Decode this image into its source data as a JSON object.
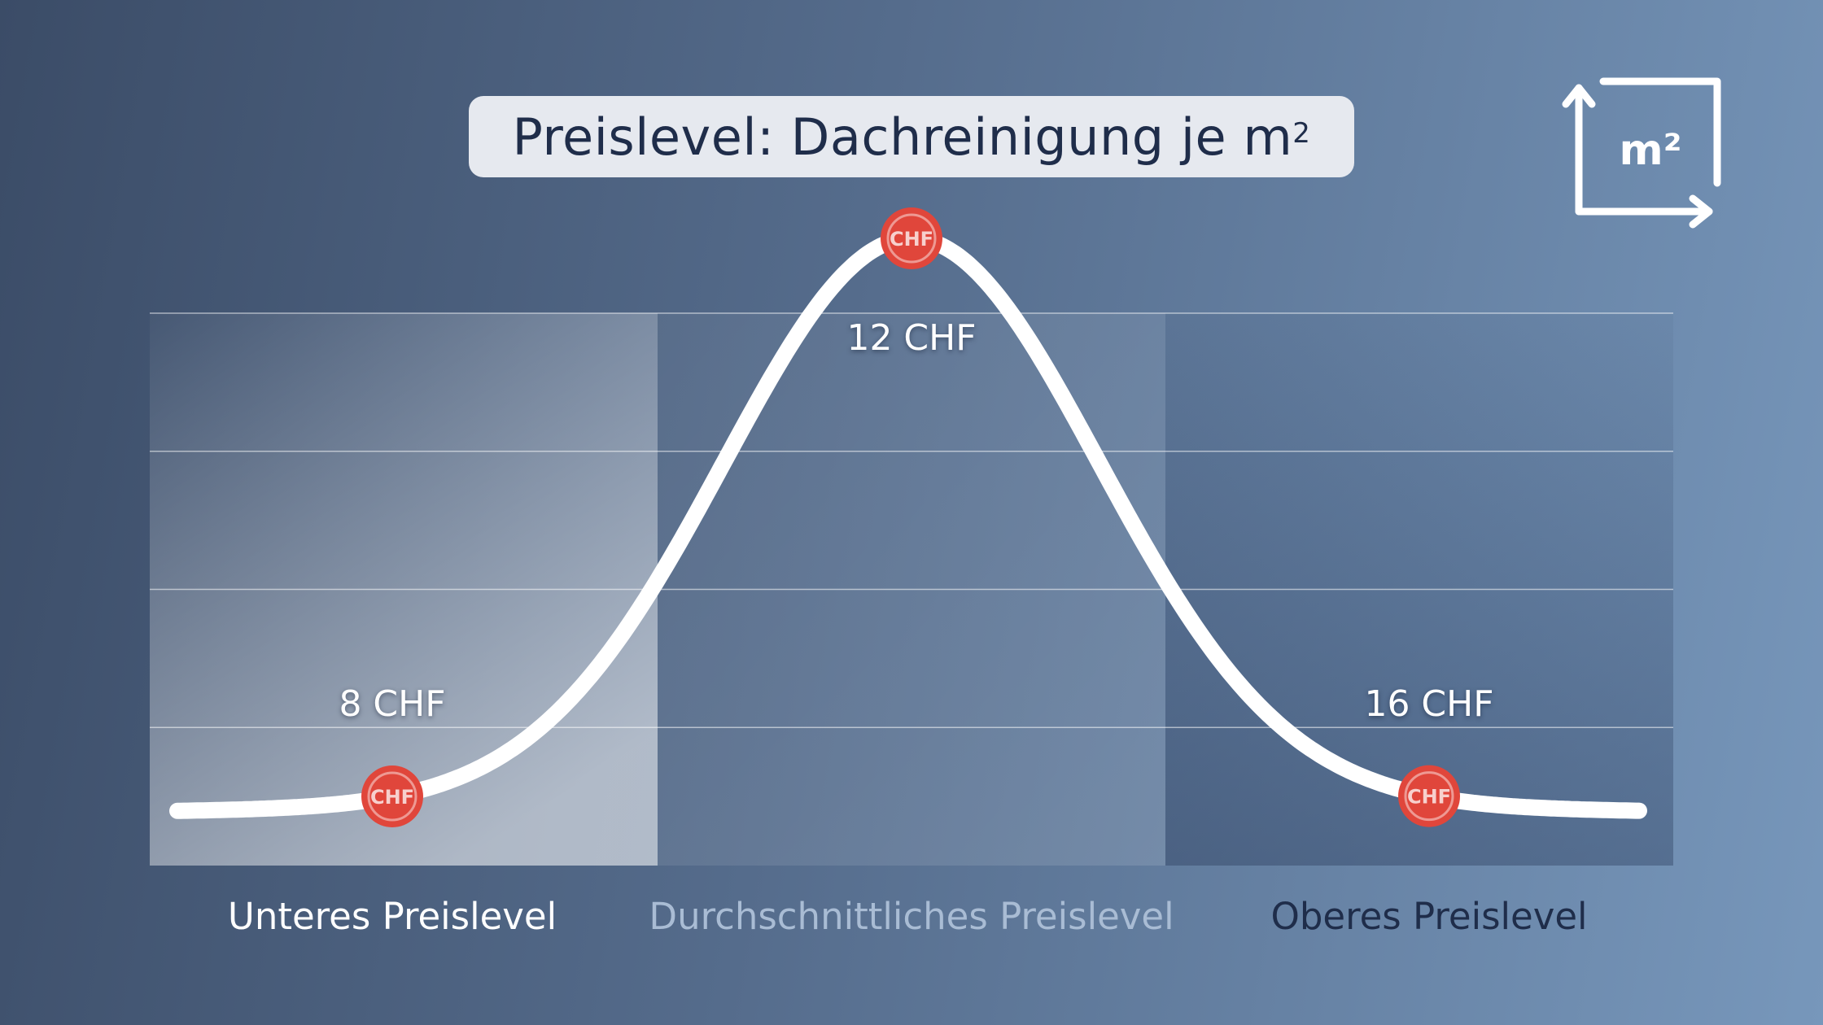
{
  "chart_data": {
    "type": "line",
    "title": "Preislevel: Dachreinigung je m",
    "title_sup": "2",
    "categories": [
      "Unteres Preislevel",
      "Durchschnittliches Preislevel",
      "Oberes Preislevel"
    ],
    "points": [
      {
        "category": "Unteres Preislevel",
        "value": 8,
        "label": "8 CHF",
        "marker": "CHF"
      },
      {
        "category": "Durchschnittliches Preislevel",
        "value": 12,
        "label": "12 CHF",
        "marker": "CHF"
      },
      {
        "category": "Oberes Preislevel",
        "value": 16,
        "label": "16 CHF",
        "marker": "CHF"
      }
    ],
    "grid": true,
    "category_colors": [
      "#ffffff",
      "#a9bcd4",
      "#1f2d4a"
    ],
    "line_color": "#ffffff",
    "marker_color": "#e0463b"
  },
  "icon": {
    "name": "m2-area-icon",
    "text": "m²"
  }
}
